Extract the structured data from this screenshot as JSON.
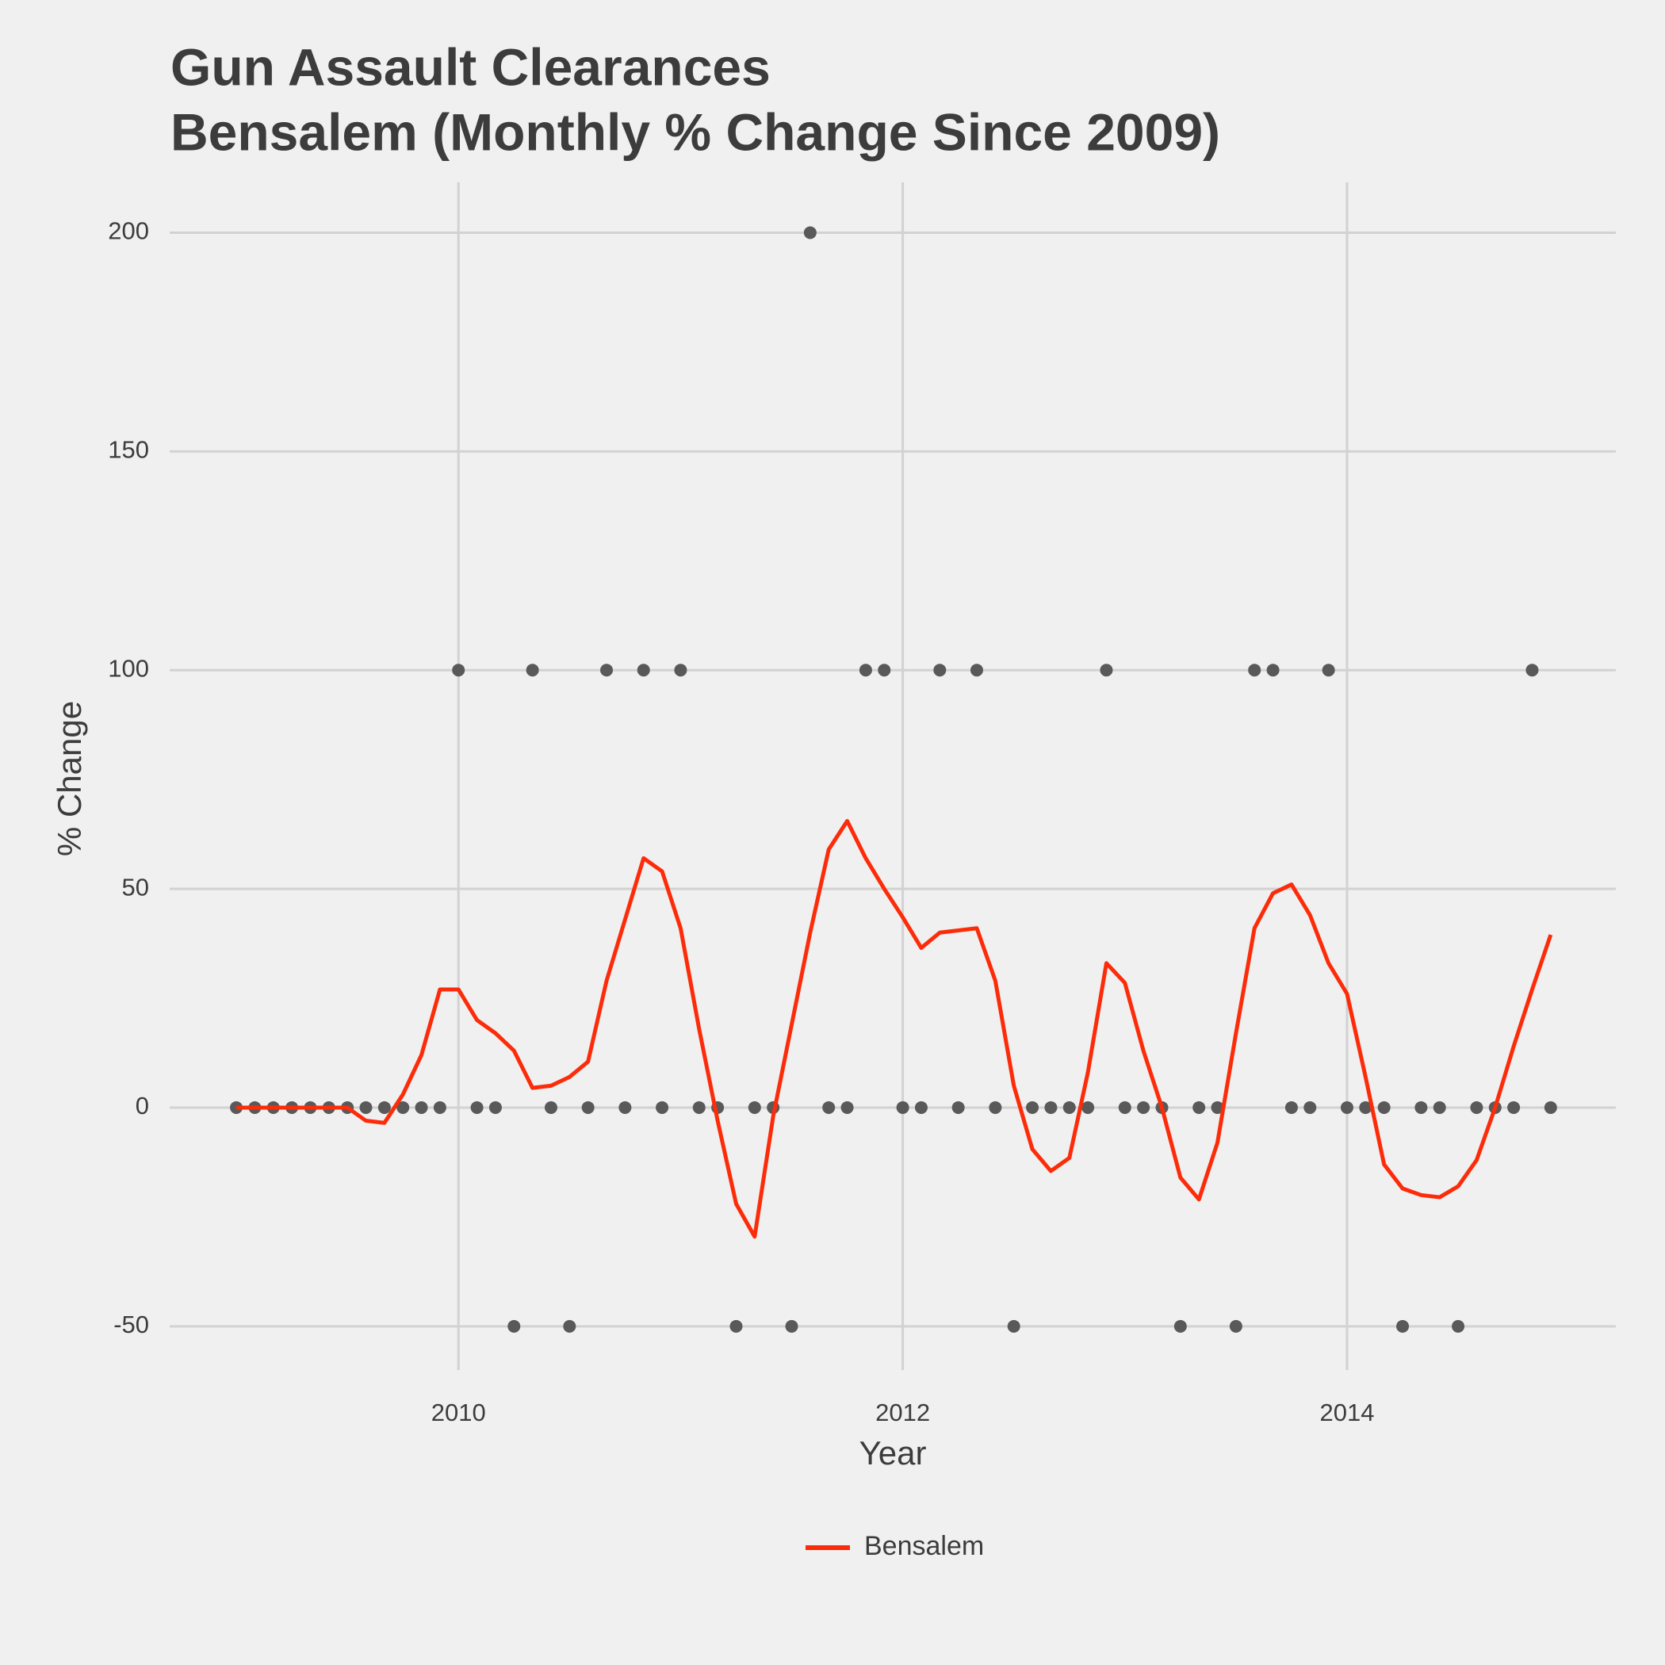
{
  "chart_data": {
    "type": "line",
    "title": [
      "Gun Assault Clearances",
      "Bensalem (Monthly % Change Since 2009)"
    ],
    "x_label": "Year",
    "y_label": "% Change",
    "x": [
      2009,
      2009.0833,
      2009.1667,
      2009.25,
      2009.3333,
      2009.4167,
      2009.5,
      2009.5833,
      2009.6667,
      2009.75,
      2009.8333,
      2009.9167,
      2010,
      2010.0833,
      2010.1667,
      2010.25,
      2010.3333,
      2010.4167,
      2010.5,
      2010.5833,
      2010.6667,
      2010.75,
      2010.8333,
      2010.9167,
      2011,
      2011.0833,
      2011.1667,
      2011.25,
      2011.3333,
      2011.4167,
      2011.5,
      2011.5833,
      2011.6667,
      2011.75,
      2011.8333,
      2011.9167,
      2012,
      2012.0833,
      2012.1667,
      2012.25,
      2012.3333,
      2012.4167,
      2012.5,
      2012.5833,
      2012.6667,
      2012.75,
      2012.8333,
      2012.9167,
      2013,
      2013.0833,
      2013.1667,
      2013.25,
      2013.3333,
      2013.4167,
      2013.5,
      2013.5833,
      2013.6667,
      2013.75,
      2013.8333,
      2013.9167,
      2014,
      2014.0833,
      2014.1667,
      2014.25,
      2014.3333,
      2014.4167,
      2014.5,
      2014.5833,
      2014.6667,
      2014.75,
      2014.8333,
      2014.9167
    ],
    "series": [
      {
        "type": "scatter",
        "color": "#595959",
        "values": [
          0,
          0,
          0,
          0,
          0,
          0,
          0,
          0,
          0,
          0,
          0,
          0,
          100,
          0,
          0,
          -50,
          100,
          0,
          -50,
          0,
          100,
          0,
          100,
          0,
          100,
          0,
          0,
          -50,
          0,
          0,
          -50,
          200,
          0,
          0,
          100,
          100,
          0,
          0,
          100,
          0,
          100,
          0,
          -50,
          0,
          0,
          0,
          0,
          100,
          0,
          0,
          0,
          -50,
          0,
          0,
          -50,
          100,
          100,
          0,
          0,
          100,
          0,
          0,
          0,
          -50,
          0,
          0,
          -50,
          0,
          0,
          0,
          100,
          0
        ]
      },
      {
        "type": "line",
        "name": "Bensalem",
        "color": "#fc2c0a",
        "values": [
          0,
          0,
          0,
          0,
          0,
          0,
          0,
          -3,
          -3.5,
          3,
          12,
          27,
          27,
          20,
          17,
          13,
          4.5,
          5,
          7,
          10.5,
          29,
          43,
          57,
          54,
          41,
          18,
          -3,
          -22,
          -29.5,
          -2,
          19,
          40,
          59,
          65.5,
          57,
          50,
          43.5,
          36.5,
          40,
          40.5,
          41,
          29,
          5,
          -9.5,
          -14.5,
          -11.5,
          8,
          33,
          28.5,
          13,
          0,
          -16,
          -21,
          -8,
          17,
          41,
          49,
          51,
          44,
          33,
          26,
          7,
          -13,
          -18.5,
          -20,
          -20.5,
          -18,
          -12,
          0,
          14,
          27,
          39.5
        ]
      }
    ],
    "xlim": [
      2008.7,
      2015.21
    ],
    "xticks": [
      2010,
      2012,
      2014
    ],
    "ylim": [
      -60,
      211.5
    ],
    "yticks": [
      -50,
      0,
      50,
      100,
      150,
      200
    ],
    "grid": true,
    "legend": "bottom"
  }
}
